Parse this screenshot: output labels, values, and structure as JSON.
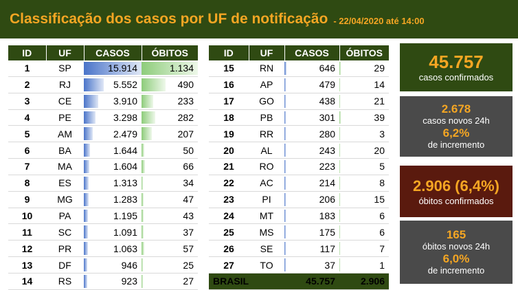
{
  "header": {
    "title": "Classificação dos casos por UF de notificação",
    "subtitle": "- 22/04/2020 até 14:00"
  },
  "columns": {
    "id": "ID",
    "uf": "UF",
    "casos": "CASOS",
    "obitos": "ÓBITOS"
  },
  "colors": {
    "header_bg": "#2f4a12",
    "accent": "#f5a623",
    "cases_bar": "#4a74c9",
    "deaths_bar": "#8dcc7a"
  },
  "chart_data": {
    "type": "table",
    "title": "Classificação dos casos por UF de notificação",
    "scale_max": {
      "casos": 15914,
      "obitos": 1134
    },
    "rows": [
      {
        "id": "1",
        "uf": "SP",
        "casos": "15.914",
        "obitos": "1.134",
        "casos_value": 15914,
        "obitos_value": 1134
      },
      {
        "id": "2",
        "uf": "RJ",
        "casos": "5.552",
        "obitos": "490",
        "casos_value": 5552,
        "obitos_value": 490
      },
      {
        "id": "3",
        "uf": "CE",
        "casos": "3.910",
        "obitos": "233",
        "casos_value": 3910,
        "obitos_value": 233
      },
      {
        "id": "4",
        "uf": "PE",
        "casos": "3.298",
        "obitos": "282",
        "casos_value": 3298,
        "obitos_value": 282
      },
      {
        "id": "5",
        "uf": "AM",
        "casos": "2.479",
        "obitos": "207",
        "casos_value": 2479,
        "obitos_value": 207
      },
      {
        "id": "6",
        "uf": "BA",
        "casos": "1.644",
        "obitos": "50",
        "casos_value": 1644,
        "obitos_value": 50
      },
      {
        "id": "7",
        "uf": "MA",
        "casos": "1.604",
        "obitos": "66",
        "casos_value": 1604,
        "obitos_value": 66
      },
      {
        "id": "8",
        "uf": "ES",
        "casos": "1.313",
        "obitos": "34",
        "casos_value": 1313,
        "obitos_value": 34
      },
      {
        "id": "9",
        "uf": "MG",
        "casos": "1.283",
        "obitos": "47",
        "casos_value": 1283,
        "obitos_value": 47
      },
      {
        "id": "10",
        "uf": "PA",
        "casos": "1.195",
        "obitos": "43",
        "casos_value": 1195,
        "obitos_value": 43
      },
      {
        "id": "11",
        "uf": "SC",
        "casos": "1.091",
        "obitos": "37",
        "casos_value": 1091,
        "obitos_value": 37
      },
      {
        "id": "12",
        "uf": "PR",
        "casos": "1.063",
        "obitos": "57",
        "casos_value": 1063,
        "obitos_value": 57
      },
      {
        "id": "13",
        "uf": "DF",
        "casos": "946",
        "obitos": "25",
        "casos_value": 946,
        "obitos_value": 25
      },
      {
        "id": "14",
        "uf": "RS",
        "casos": "923",
        "obitos": "27",
        "casos_value": 923,
        "obitos_value": 27
      },
      {
        "id": "15",
        "uf": "RN",
        "casos": "646",
        "obitos": "29",
        "casos_value": 646,
        "obitos_value": 29
      },
      {
        "id": "16",
        "uf": "AP",
        "casos": "479",
        "obitos": "14",
        "casos_value": 479,
        "obitos_value": 14
      },
      {
        "id": "17",
        "uf": "GO",
        "casos": "438",
        "obitos": "21",
        "casos_value": 438,
        "obitos_value": 21
      },
      {
        "id": "18",
        "uf": "PB",
        "casos": "301",
        "obitos": "39",
        "casos_value": 301,
        "obitos_value": 39
      },
      {
        "id": "19",
        "uf": "RR",
        "casos": "280",
        "obitos": "3",
        "casos_value": 280,
        "obitos_value": 3
      },
      {
        "id": "20",
        "uf": "AL",
        "casos": "243",
        "obitos": "20",
        "casos_value": 243,
        "obitos_value": 20
      },
      {
        "id": "21",
        "uf": "RO",
        "casos": "223",
        "obitos": "5",
        "casos_value": 223,
        "obitos_value": 5
      },
      {
        "id": "22",
        "uf": "AC",
        "casos": "214",
        "obitos": "8",
        "casos_value": 214,
        "obitos_value": 8
      },
      {
        "id": "23",
        "uf": "PI",
        "casos": "206",
        "obitos": "15",
        "casos_value": 206,
        "obitos_value": 15
      },
      {
        "id": "24",
        "uf": "MT",
        "casos": "183",
        "obitos": "6",
        "casos_value": 183,
        "obitos_value": 6
      },
      {
        "id": "25",
        "uf": "MS",
        "casos": "175",
        "obitos": "6",
        "casos_value": 175,
        "obitos_value": 6
      },
      {
        "id": "26",
        "uf": "SE",
        "casos": "117",
        "obitos": "7",
        "casos_value": 117,
        "obitos_value": 7
      },
      {
        "id": "27",
        "uf": "TO",
        "casos": "37",
        "obitos": "1",
        "casos_value": 37,
        "obitos_value": 1
      }
    ],
    "total": {
      "label": "BRASIL",
      "casos": "45.757",
      "obitos": "2.906"
    }
  },
  "cards": {
    "confirmed": {
      "value": "45.757",
      "label": "casos confirmados"
    },
    "new_cases": {
      "value": "2.678",
      "label": "casos novos 24h",
      "pct": "6,2%",
      "pct_label": "de incremento"
    },
    "deaths": {
      "value": "2.906 (6,4%)",
      "label": "óbitos confirmados"
    },
    "new_deaths": {
      "value": "165",
      "label": "óbitos novos 24h",
      "pct": "6,0%",
      "pct_label": "de incremento"
    }
  }
}
